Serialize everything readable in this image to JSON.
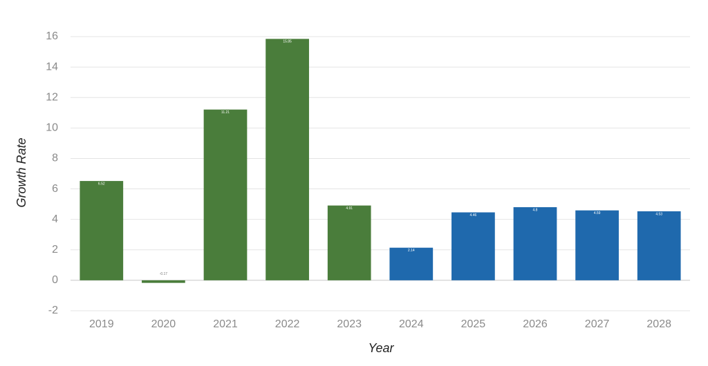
{
  "chart_data": {
    "type": "bar",
    "x_label": "Year",
    "y_label": "Growth Rate",
    "categories": [
      "2019",
      "2020",
      "2021",
      "2022",
      "2023",
      "2024",
      "2025",
      "2026",
      "2027",
      "2028"
    ],
    "values": [
      6.52,
      -0.17,
      11.21,
      15.85,
      4.91,
      2.14,
      4.46,
      4.8,
      4.59,
      4.53
    ],
    "colors": [
      "#4a7d3b",
      "#4a7d3b",
      "#4a7d3b",
      "#4a7d3b",
      "#4a7d3b",
      "#1f69ad",
      "#1f69ad",
      "#1f69ad",
      "#1f69ad",
      "#1f69ad"
    ],
    "ylim": [
      -2,
      16
    ],
    "yticks": [
      -2,
      0,
      2,
      4,
      6,
      8,
      10,
      12,
      14,
      16
    ],
    "grid": true
  }
}
